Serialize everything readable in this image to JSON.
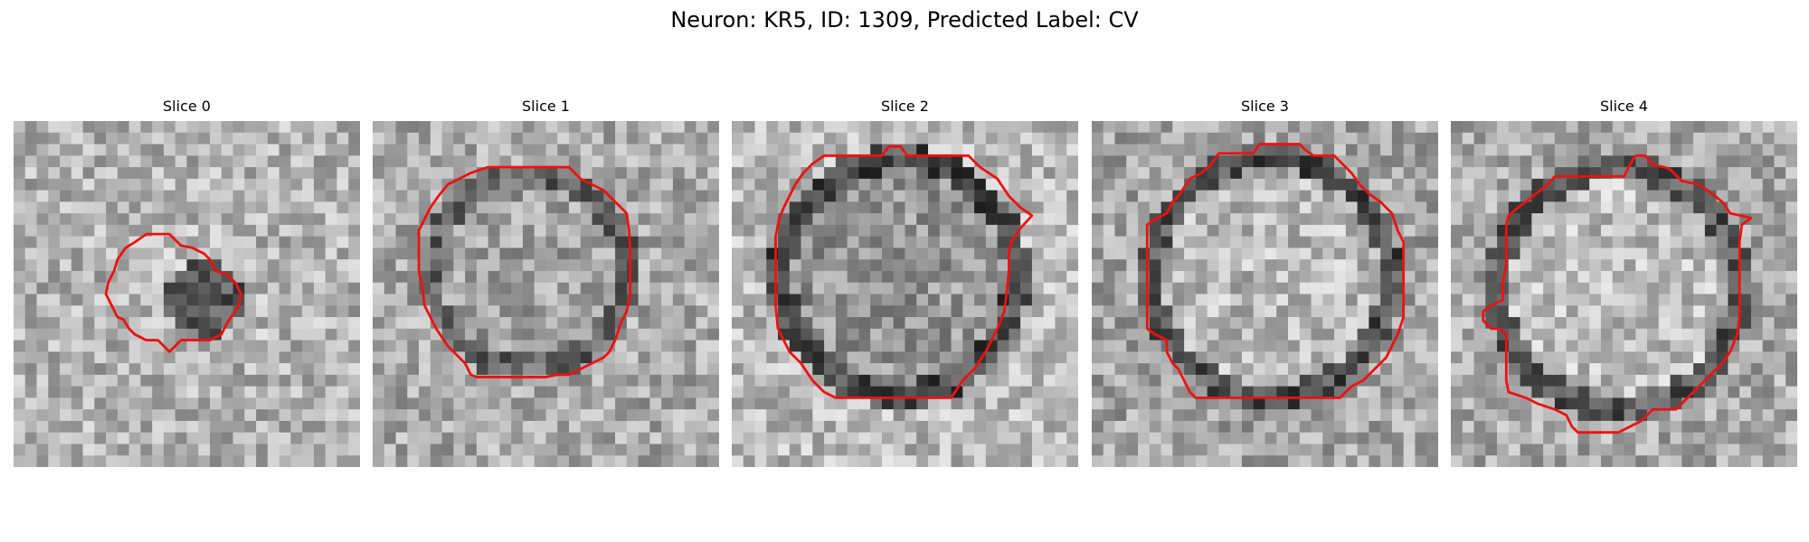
{
  "figure": {
    "title": "Neuron: KR5, ID: 1309, Predicted Label: CV"
  },
  "colors": {
    "contour": "#ee1111",
    "background": "#ffffff",
    "colormap": "grayscale"
  },
  "panels": [
    {
      "title": "Slice 0"
    },
    {
      "title": "Slice 1"
    },
    {
      "title": "Slice 2"
    },
    {
      "title": "Slice 3"
    },
    {
      "title": "Slice 4"
    }
  ]
}
